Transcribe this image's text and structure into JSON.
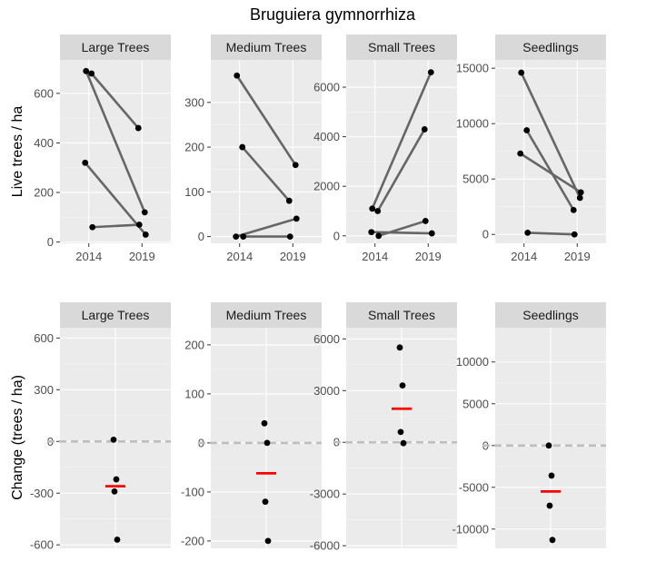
{
  "chart_data": {
    "type": "faceted_paired_dot",
    "title": "Bruguiera  gymnorrhiza",
    "rows": [
      {
        "ylabel": "Live trees / ha",
        "panels": [
          {
            "facet": "Large Trees",
            "type": "line",
            "x_ticks": [
              "2014",
              "2019"
            ],
            "ylim": [
              -5,
              735
            ],
            "y_ticks": [
              0,
              200,
              400,
              600
            ],
            "pairs": [
              {
                "y2014": 690,
                "y2019": 120
              },
              {
                "y2014": 680,
                "y2019": 460
              },
              {
                "y2014": 320,
                "y2019": 30
              },
              {
                "y2014": 60,
                "y2019": 70
              }
            ]
          },
          {
            "facet": "Medium Trees",
            "type": "line",
            "x_ticks": [
              "2014",
              "2019"
            ],
            "ylim": [
              -15,
              395
            ],
            "y_ticks": [
              0,
              100,
              200,
              300
            ],
            "pairs": [
              {
                "y2014": 360,
                "y2019": 160
              },
              {
                "y2014": 200,
                "y2019": 80
              },
              {
                "y2014": 0,
                "y2019": 40
              },
              {
                "y2014": 0,
                "y2019": 0
              }
            ]
          },
          {
            "facet": "Small Trees",
            "type": "line",
            "x_ticks": [
              "2014",
              "2019"
            ],
            "ylim": [
              -300,
              7100
            ],
            "y_ticks": [
              0,
              2000,
              4000,
              6000
            ],
            "pairs": [
              {
                "y2014": 1100,
                "y2019": 6600
              },
              {
                "y2014": 1000,
                "y2019": 4300
              },
              {
                "y2014": 150,
                "y2019": 100
              },
              {
                "y2014": 0,
                "y2019": 600
              }
            ]
          },
          {
            "facet": "Seedlings",
            "type": "line",
            "x_ticks": [
              "2014",
              "2019"
            ],
            "ylim": [
              -800,
              15750
            ],
            "y_ticks": [
              0,
              5000,
              10000,
              15000
            ],
            "pairs": [
              {
                "y2014": 14600,
                "y2019": 3300
              },
              {
                "y2014": 9400,
                "y2019": 2200
              },
              {
                "y2014": 7300,
                "y2019": 3800
              },
              {
                "y2014": 150,
                "y2019": 0
              }
            ]
          }
        ]
      },
      {
        "ylabel": "Change (trees / ha)",
        "panels": [
          {
            "facet": "Large Trees",
            "type": "dot",
            "ylim": [
              -620,
              660
            ],
            "y_ticks": [
              -600,
              -300,
              0,
              300,
              600
            ],
            "points": [
              10,
              -220,
              -290,
              -570
            ],
            "mean": -260
          },
          {
            "facet": "Medium Trees",
            "type": "dot",
            "ylim": [
              -215,
              235
            ],
            "y_ticks": [
              -200,
              -100,
              0,
              100,
              200
            ],
            "points": [
              40,
              0,
              -120,
              -200
            ],
            "mean": -62
          },
          {
            "facet": "Small Trees",
            "type": "dot",
            "ylim": [
              -6150,
              6650
            ],
            "y_ticks": [
              -6000,
              -3000,
              0,
              3000,
              6000
            ],
            "points": [
              5500,
              3300,
              600,
              -50
            ],
            "mean": 1950
          },
          {
            "facet": "Seedlings",
            "type": "dot",
            "ylim": [
              -12300,
              14100
            ],
            "y_ticks": [
              -10000,
              -5000,
              0,
              5000,
              10000
            ],
            "points": [
              0,
              -3600,
              -7200,
              -11300
            ],
            "mean": -5500
          }
        ]
      }
    ],
    "colors": {
      "panel_bg": "#ebebeb",
      "grid_major": "#ffffff",
      "strip_bg": "#d9d9d9",
      "line": "#666666",
      "point": "#000000",
      "mean": "#ff0000",
      "zero_line": "#bebebe",
      "tick_text": "#4d4d4d"
    }
  }
}
